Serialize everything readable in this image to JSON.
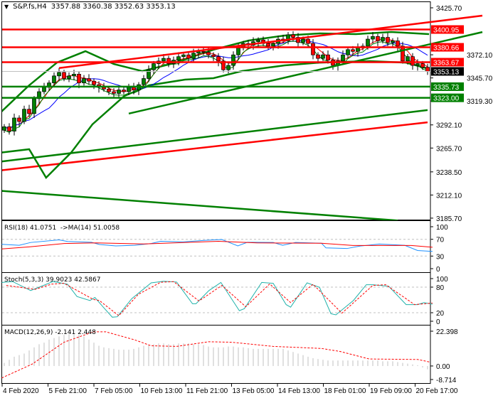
{
  "header": {
    "symbol": "S&P.fs,H4",
    "ohlc": "3357.88 3360.38 3352.63 3353.13"
  },
  "colors": {
    "bull": "#008000",
    "bear": "#ff0000",
    "level_red": "#ff0000",
    "level_green": "#008000",
    "ma_fast": "#ff0000",
    "ma_mid": "#0000ff",
    "ma_slow": "#008000",
    "rsi": "#1e90ff",
    "rsi_ma": "#ff0000",
    "stoch_main": "#20b2aa",
    "stoch_signal": "#ff0000",
    "macd_hist": "#c0c0c0",
    "macd_signal": "#ff0000"
  },
  "chart_data": [
    {
      "type": "candlestick",
      "title": "S&P.fs,H4",
      "ylim": [
        3185.7,
        3425.7
      ],
      "y_ticks": [
        "3425.70",
        "3372.10",
        "3345.70",
        "3319.30",
        "3292.10",
        "3265.70",
        "3238.50",
        "3212.10",
        "3185.70"
      ],
      "x_ticks": [
        "4 Feb 2020",
        "5 Feb 21:00",
        "7 Feb 05:00",
        "10 Feb 13:00",
        "11 Feb 21:00",
        "13 Feb 05:00",
        "14 Feb 13:00",
        "18 Feb 01:00",
        "19 Feb 09:00",
        "20 Feb 17:00"
      ],
      "closes": [
        3290,
        3285,
        3300,
        3296,
        3310,
        3305,
        3322,
        3330,
        3335,
        3340,
        3348,
        3352,
        3345,
        3348,
        3350,
        3340,
        3345,
        3342,
        3338,
        3335,
        3333,
        3330,
        3328,
        3332,
        3330,
        3335,
        3332,
        3338,
        3345,
        3355,
        3362,
        3365,
        3368,
        3362,
        3366,
        3370,
        3372,
        3368,
        3374,
        3376,
        3375,
        3372,
        3370,
        3365,
        3355,
        3360,
        3372,
        3380,
        3385,
        3383,
        3387,
        3389,
        3385,
        3382,
        3385,
        3390,
        3388,
        3395,
        3392,
        3386,
        3390,
        3385,
        3372,
        3368,
        3372,
        3366,
        3360,
        3365,
        3372,
        3378,
        3376,
        3380,
        3382,
        3390,
        3393,
        3388,
        3392,
        3386,
        3388,
        3382,
        3365,
        3370,
        3360,
        3362,
        3357.88,
        3353.13
      ],
      "current_price": {
        "value": "3353.13"
      },
      "levels": [
        {
          "value": "3400.95",
          "color": "#ff0000"
        },
        {
          "value": "3380.66",
          "color": "#ff0000"
        },
        {
          "value": "3363.67",
          "color": "#ff0000"
        },
        {
          "value": "3335.73",
          "color": "#008000"
        },
        {
          "value": "3323.00",
          "color": "#008000"
        }
      ],
      "trendlines": [
        {
          "color": "#ff0000",
          "points": [
            [
              11,
              3357
            ],
            [
              96,
              3416.8
            ]
          ]
        },
        {
          "color": "#008000",
          "points": [
            [
              25,
              3305
            ],
            [
              96,
              3398
            ]
          ]
        },
        {
          "color": "#ff0000",
          "points": [
            [
              -1,
              3240
            ],
            [
              85,
              3295
            ]
          ]
        },
        {
          "color": "#008000",
          "points": [
            [
              -1,
              3250
            ],
            [
              85,
              3309
            ]
          ]
        },
        {
          "color": "#008000",
          "points": [
            [
              -1,
              3217
            ],
            [
              79,
              3183
            ]
          ]
        }
      ],
      "bollinger_upper": [
        [
          -1,
          3304.9
        ],
        [
          5,
          3337.3
        ],
        [
          10.6,
          3363.3
        ],
        [
          16.3,
          3376.2
        ],
        [
          22,
          3361.6
        ],
        [
          27.7,
          3353.5
        ],
        [
          33.4,
          3361.6
        ],
        [
          42,
          3377.9
        ],
        [
          49.1,
          3388.4
        ],
        [
          56.3,
          3394.1
        ],
        [
          63.4,
          3396.5
        ],
        [
          70.6,
          3395.7
        ],
        [
          77.7,
          3398.1
        ],
        [
          85.3,
          3395.7
        ]
      ],
      "bollinger_lower": [
        [
          -1,
          3260.3
        ],
        [
          5,
          3264.3
        ],
        [
          8.4,
          3231.9
        ],
        [
          13.4,
          3260.3
        ],
        [
          17.7,
          3292.7
        ],
        [
          24.1,
          3325.1
        ],
        [
          29.1,
          3337.3
        ],
        [
          36.3,
          3343.8
        ],
        [
          42,
          3345.4
        ],
        [
          47.7,
          3353.5
        ],
        [
          56.3,
          3360
        ],
        [
          63.4,
          3363.2
        ],
        [
          73.4,
          3364.9
        ],
        [
          80.6,
          3363.2
        ],
        [
          85.3,
          3356
        ]
      ]
    },
    {
      "type": "line",
      "title": "RSI(18) 41.0751  ->MA(14) 51.0058",
      "ylim": [
        0,
        100
      ],
      "y_ticks": [
        "100",
        "70",
        "30",
        "0"
      ],
      "levels": [
        70,
        30
      ],
      "series": [
        {
          "points": [
            [
              -0.5,
              58
            ],
            [
              3,
              55.7
            ],
            [
              5.3,
              62.4
            ],
            [
              11,
              68.6
            ],
            [
              12.7,
              64.8
            ],
            [
              17.5,
              62.9
            ],
            [
              19.1,
              57.6
            ],
            [
              22.4,
              54.3
            ],
            [
              26.2,
              55.7
            ],
            [
              29.5,
              60
            ],
            [
              31.4,
              65.2
            ],
            [
              35.9,
              63.8
            ],
            [
              40.4,
              67.6
            ],
            [
              43.7,
              69.5
            ],
            [
              46.9,
              54.3
            ],
            [
              48.8,
              62.9
            ],
            [
              54,
              62.4
            ],
            [
              55.9,
              55.7
            ],
            [
              58.5,
              62.4
            ],
            [
              63.7,
              60.5
            ],
            [
              64.6,
              49.5
            ],
            [
              68.8,
              48
            ],
            [
              71.4,
              53.8
            ],
            [
              75.3,
              58.6
            ],
            [
              80.4,
              55.7
            ],
            [
              83,
              43.3
            ],
            [
              86,
              41.08
            ]
          ]
        },
        {
          "points": [
            [
              -0.5,
              47
            ],
            [
              5,
              52
            ],
            [
              12,
              60
            ],
            [
              18.5,
              61.4
            ],
            [
              28,
              59
            ],
            [
              36.5,
              62.4
            ],
            [
              43,
              65.2
            ],
            [
              50.7,
              61.4
            ],
            [
              63.7,
              60.5
            ],
            [
              70,
              55.2
            ],
            [
              81.7,
              55.2
            ],
            [
              86,
              51.01
            ]
          ]
        }
      ]
    },
    {
      "type": "line",
      "title": "Stoch(5,3,3) 39.9023 42.5867",
      "ylim": [
        0,
        100
      ],
      "y_ticks": [
        "100",
        "80",
        "20",
        "0"
      ],
      "levels": [
        80,
        20
      ],
      "series": [
        {
          "points": [
            [
              -0.5,
              91
            ],
            [
              1.7,
              93
            ],
            [
              5.3,
              72
            ],
            [
              9.8,
              93
            ],
            [
              12.7,
              87
            ],
            [
              14.6,
              58
            ],
            [
              17.2,
              48.6
            ],
            [
              18.2,
              55.7
            ],
            [
              19.8,
              34
            ],
            [
              21.7,
              9.5
            ],
            [
              22.7,
              10.5
            ],
            [
              25.6,
              53
            ],
            [
              29.5,
              90
            ],
            [
              32,
              93.8
            ],
            [
              34.6,
              92
            ],
            [
              37.8,
              41
            ],
            [
              38.5,
              41
            ],
            [
              41.1,
              72
            ],
            [
              43.5,
              91
            ],
            [
              47.2,
              24.8
            ],
            [
              48.2,
              29.5
            ],
            [
              51.7,
              91
            ],
            [
              54,
              89
            ],
            [
              56.6,
              39
            ],
            [
              57.5,
              33
            ],
            [
              60.8,
              90
            ],
            [
              63.3,
              79.5
            ],
            [
              65.6,
              17.6
            ],
            [
              66.6,
              15
            ],
            [
              70.1,
              48.6
            ],
            [
              72.7,
              85.7
            ],
            [
              74,
              85.7
            ],
            [
              77.2,
              82
            ],
            [
              80.7,
              39
            ],
            [
              83,
              39
            ],
            [
              84.3,
              43.8
            ],
            [
              86,
              39.9
            ]
          ]
        },
        {
          "points": [
            [
              0.4,
              84
            ],
            [
              6.2,
              74.8
            ],
            [
              9.5,
              87
            ],
            [
              12,
              89
            ],
            [
              17.9,
              51
            ],
            [
              19.1,
              48.6
            ],
            [
              23,
              13
            ],
            [
              26.9,
              62.9
            ],
            [
              31.4,
              91.4
            ],
            [
              34,
              93
            ],
            [
              39.1,
              47.6
            ],
            [
              43.7,
              84
            ],
            [
              48.5,
              34
            ],
            [
              53.3,
              87.6
            ],
            [
              57.5,
              43.8
            ],
            [
              62,
              86.7
            ],
            [
              67.8,
              19
            ],
            [
              74,
              84
            ],
            [
              76.6,
              85.7
            ],
            [
              82.4,
              39
            ],
            [
              86,
              42.59
            ]
          ]
        }
      ]
    },
    {
      "type": "bar",
      "title": "MACD(12,26,9) -2.141 2.448",
      "ylim": [
        -8.714,
        22.398
      ],
      "y_ticks": [
        "22.398",
        "0.00",
        "-8.714"
      ],
      "histogram": [
        2,
        4,
        6,
        7,
        8,
        10,
        12,
        14,
        15,
        17,
        18,
        19,
        20,
        20.5,
        20.5,
        20,
        19,
        17,
        15,
        13,
        12,
        11.5,
        11,
        10.5,
        10.5,
        10.5,
        11,
        12,
        13,
        13.5,
        14,
        14.5,
        14.5,
        14,
        14,
        14.5,
        14.5,
        14.5,
        14,
        14,
        13.5,
        12.5,
        12,
        12,
        12,
        12.5,
        12.5,
        12,
        12,
        11.5,
        11,
        11,
        11,
        11,
        11,
        11,
        11,
        10,
        9,
        8,
        7,
        6,
        5,
        4.5,
        4,
        3.5,
        3.5,
        3.5,
        3.5,
        3.5,
        3.5,
        3.5,
        3.5,
        3.5,
        3.5,
        3.5,
        3,
        3,
        3,
        2.5,
        2,
        1.5,
        1,
        0.5,
        -1,
        -2.141
      ],
      "signal": [
        [
          -0.5,
          -7.7
        ],
        [
          5.6,
          1.2
        ],
        [
          12,
          15.3
        ],
        [
          17.9,
          22
        ],
        [
          20.4,
          22
        ],
        [
          26.2,
          16.8
        ],
        [
          29.5,
          13
        ],
        [
          34.6,
          12.6
        ],
        [
          41,
          15.6
        ],
        [
          45.6,
          15.3
        ],
        [
          54,
          12.6
        ],
        [
          63.7,
          11.3
        ],
        [
          67.5,
          9.3
        ],
        [
          73.3,
          4.5
        ],
        [
          83,
          4.2
        ],
        [
          85.6,
          2.448
        ]
      ]
    }
  ]
}
